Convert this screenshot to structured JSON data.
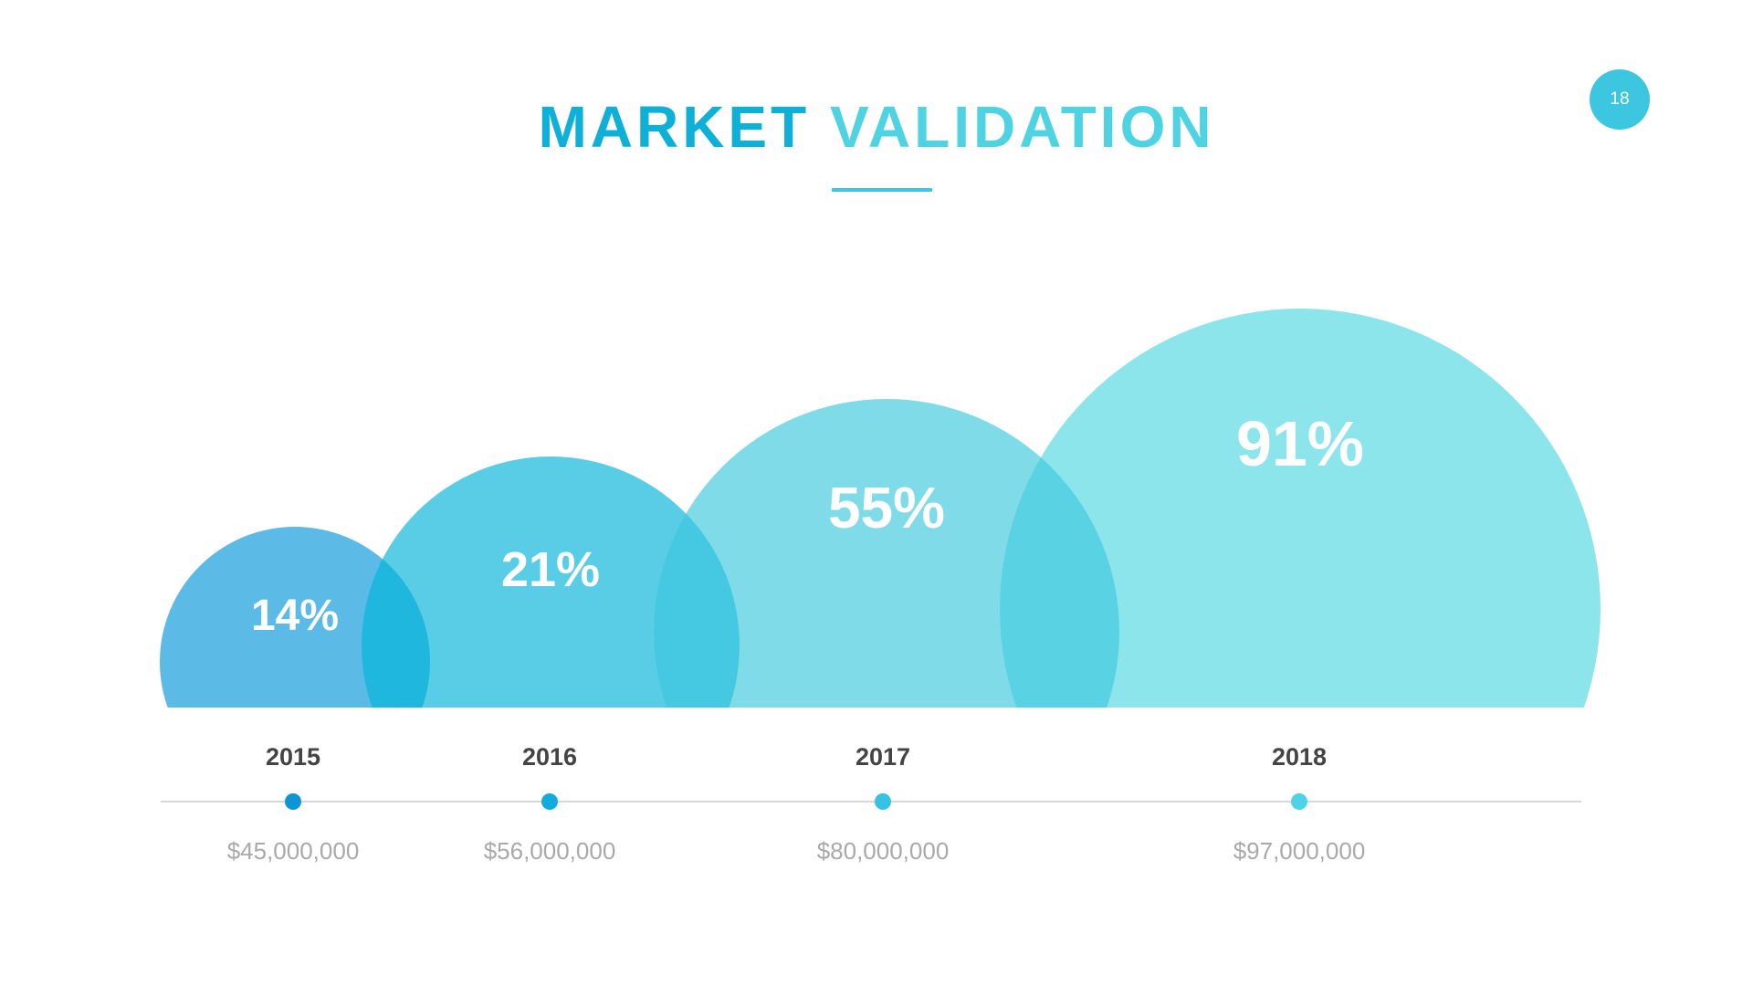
{
  "slide": {
    "page_number": "18",
    "title_word_1": "MARKET",
    "title_word_2": "VALIDATION"
  },
  "colors": {
    "title_1": "#0fb0d8",
    "title_2": "#4fd3e2",
    "circles": [
      "#5bbbe6",
      "#59cde6",
      "#80dbe9",
      "#8be5ea"
    ],
    "overlaps": [
      "#20b7df",
      "#45c9e2",
      "#59d3e4"
    ],
    "dots": [
      "#0d95d6",
      "#13abdb",
      "#36c2e2",
      "#4ed3e6"
    ],
    "axis": "#d8d8d8"
  },
  "chart_data": {
    "type": "bubble-timeline",
    "categories": [
      "2015",
      "2016",
      "2017",
      "2018"
    ],
    "percent_labels": [
      "14%",
      "21%",
      "55%",
      "91%"
    ],
    "percent_values": [
      14,
      21,
      55,
      91
    ],
    "value_labels": [
      "$45,000,000",
      "$56,000,000",
      "$80,000,000",
      "$97,000,000"
    ],
    "values": [
      45000000,
      56000000,
      80000000,
      97000000
    ]
  }
}
